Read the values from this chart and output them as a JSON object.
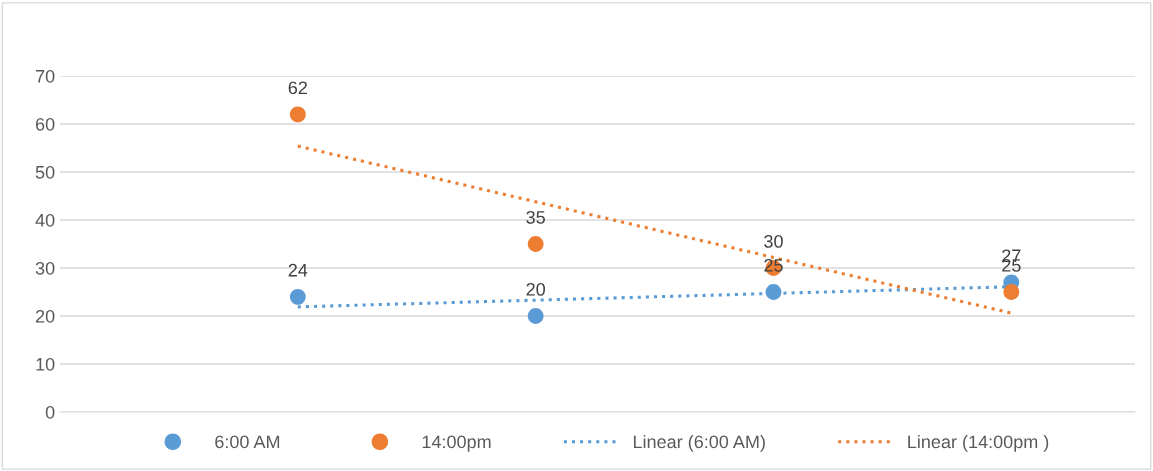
{
  "chart_data": {
    "type": "scatter",
    "categories": [
      null,
      null,
      null,
      null
    ],
    "series": [
      {
        "name": "6:00 AM",
        "color": "#5b9bd5",
        "values": [
          24,
          20,
          25,
          27
        ],
        "value_labels": [
          "24",
          "20",
          "25",
          "27"
        ],
        "marker": "circle"
      },
      {
        "name": "14:00pm",
        "color": "#ed7d31",
        "values": [
          62,
          35,
          30,
          25
        ],
        "value_labels": [
          "62",
          "35",
          "30",
          "25"
        ],
        "marker": "circle"
      },
      {
        "name": "Linear (6:00 AM)",
        "type": "line",
        "color": "#5b9bd5",
        "values": [
          21.9,
          23.3,
          24.7,
          26.1
        ],
        "line_style": "dotted",
        "marker": "none"
      },
      {
        "name": "Linear (14:00pm )",
        "type": "line",
        "color": "#ed7d31",
        "values": [
          55.4,
          43.8,
          32.2,
          20.6
        ],
        "line_style": "dotted",
        "marker": "none"
      }
    ],
    "ylim": [
      0,
      70
    ],
    "yticks": [
      0,
      10,
      20,
      30,
      40,
      50,
      60,
      70
    ],
    "tick_labels": "y",
    "grid": "y",
    "legend": "bottom"
  }
}
